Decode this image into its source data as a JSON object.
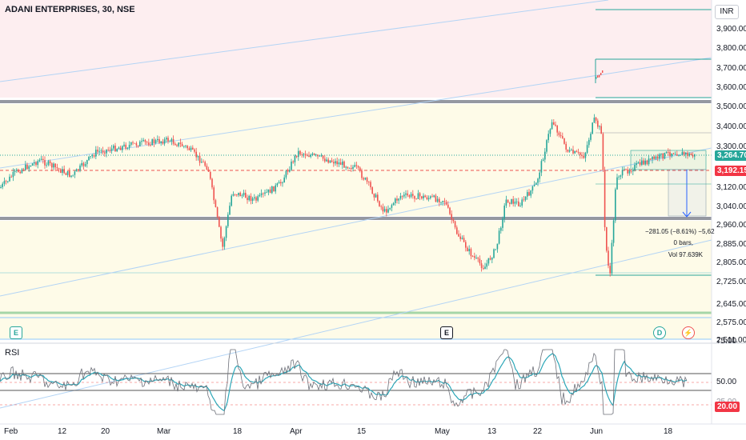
{
  "header": {
    "symbol": "ADANI ENTERPRISES, 30, NSE",
    "currency": "INR"
  },
  "price_axis": {
    "labels": [
      "3,900.00",
      "3,800.00",
      "3,700.00",
      "3,600.00",
      "3,500.00",
      "3,400.00",
      "3,300.00",
      "3,120.00",
      "3,040.00",
      "2,960.00",
      "2,885.00",
      "2,805.00",
      "2,725.00",
      "2,645.00",
      "2,575.00",
      "2,511.00"
    ],
    "last_price": "3,264.70",
    "marker_price": "3,192.15"
  },
  "rsi_axis": {
    "labels": [
      "75.00",
      "50.00"
    ],
    "marker": "20.00",
    "partial": "25.00"
  },
  "time_axis": {
    "labels": [
      "Feb",
      "12",
      "20",
      "Mar",
      "18",
      "Apr",
      "15",
      "May",
      "13",
      "22",
      "Jun",
      "18"
    ]
  },
  "panel": {
    "title": "RSI"
  },
  "measure": {
    "line1": "−281.05 (−8.61%) −5,62",
    "line2": "0 bars,",
    "line3": "Vol 97.639K"
  },
  "events": [
    {
      "icon": "earnings-icon",
      "label": "E"
    },
    {
      "icon": "earnings-icon",
      "label": "E"
    },
    {
      "icon": "dividend-icon",
      "label": "D"
    },
    {
      "icon": "flash-icon",
      "label": "⚡"
    }
  ],
  "colors": {
    "up": "#26a69a",
    "down": "#ef5350",
    "rsi": "#2ca7b8",
    "price_tag": "#26a69a",
    "marker_tag": "#f23645"
  }
}
